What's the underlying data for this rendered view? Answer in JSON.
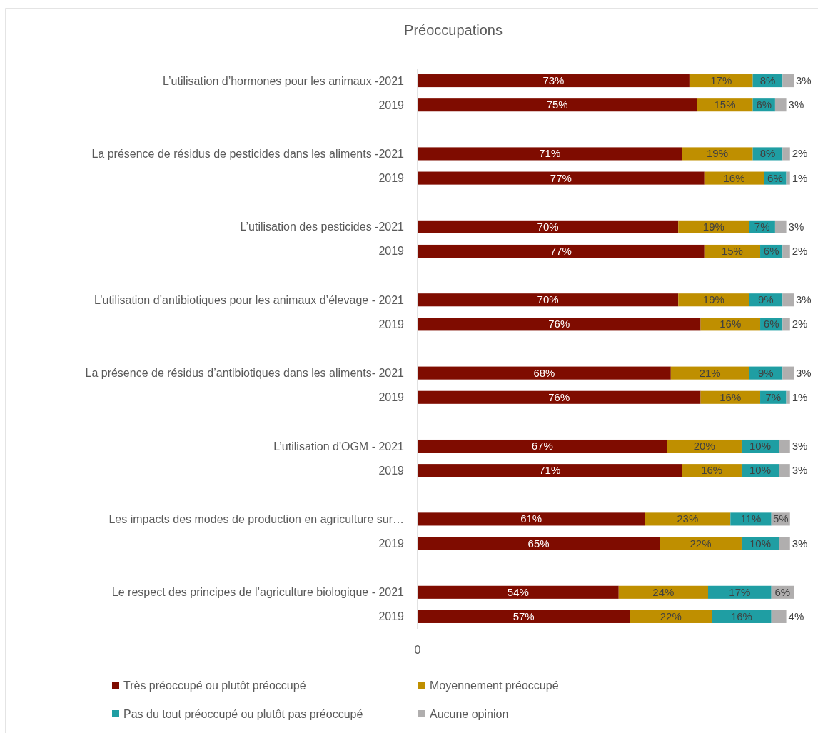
{
  "chart_data": {
    "type": "bar",
    "orientation": "horizontal",
    "stacked": true,
    "title": "Préoccupations",
    "categories": [
      "L’utilisation d’hormones pour les animaux -2021",
      "2019",
      null,
      "La présence de résidus de pesticides dans les aliments -2021",
      "2019",
      null,
      "L’utilisation des pesticides -2021",
      "2019",
      null,
      "L’utilisation d’antibiotiques pour les animaux d’élevage - 2021",
      "2019",
      null,
      "La présence de résidus d’antibiotiques dans les aliments- 2021",
      "2019",
      null,
      "L’utilisation d'OGM - 2021",
      "2019",
      null,
      "Les impacts des modes de production en agriculture sur…",
      "2019",
      null,
      "Le respect des principes de l’agriculture biologique - 2021",
      "2019"
    ],
    "series": [
      {
        "name": "Très préoccupé ou plutôt préoccupé",
        "color": "#7f0c00",
        "values": [
          73,
          75,
          null,
          71,
          77,
          null,
          70,
          77,
          null,
          70,
          76,
          null,
          68,
          76,
          null,
          67,
          71,
          null,
          61,
          65,
          null,
          54,
          57
        ],
        "value_labels": [
          "73%",
          "75%",
          null,
          "71%",
          "77%",
          null,
          "70%",
          "77%",
          null,
          "70%",
          "76%",
          null,
          "68%",
          "76%",
          null,
          "67%",
          "71%",
          null,
          "61%",
          "65%",
          null,
          "54%",
          "57%"
        ]
      },
      {
        "name": "Moyennement préoccupé",
        "color": "#bf8f00",
        "values": [
          17,
          15,
          null,
          19,
          16,
          null,
          19,
          15,
          null,
          19,
          16,
          null,
          21,
          16,
          null,
          20,
          16,
          null,
          23,
          22,
          null,
          24,
          22
        ],
        "value_labels": [
          "17%",
          "15%",
          null,
          "19%",
          "16%",
          null,
          "19%",
          "15%",
          null,
          "19%",
          "16%",
          null,
          "21%",
          "16%",
          null,
          "20%",
          "16%",
          null,
          "23%",
          "22%",
          null,
          "24%",
          "22%"
        ]
      },
      {
        "name": "Pas du tout préoccupé ou plutôt pas préoccupé",
        "color": "#1f9ea3",
        "values": [
          8,
          6,
          null,
          8,
          6,
          null,
          7,
          6,
          null,
          9,
          6,
          null,
          9,
          7,
          null,
          10,
          10,
          null,
          11,
          10,
          null,
          17,
          16
        ],
        "value_labels": [
          "8%",
          "6%",
          null,
          "8%",
          "6%",
          null,
          "7%",
          "6%",
          null,
          "9%",
          "6%",
          null,
          "9%",
          "7%",
          null,
          "10%",
          "10%",
          null,
          "11%",
          "10%",
          null,
          "17%",
          "16%"
        ]
      },
      {
        "name": "Aucune opinion",
        "color": "#b0aeae",
        "values": [
          3,
          3,
          null,
          2,
          1,
          null,
          3,
          2,
          null,
          3,
          2,
          null,
          3,
          1,
          null,
          3,
          3,
          null,
          5,
          3,
          null,
          6,
          4
        ],
        "value_labels": [
          "3%",
          "3%",
          null,
          "2%",
          "1%",
          null,
          "3%",
          "2%",
          null,
          "3%",
          "2%",
          null,
          "3%",
          "1%",
          null,
          "3%",
          "3%",
          null,
          "5%",
          "3%",
          null,
          "6%",
          "4%"
        ]
      }
    ],
    "annotations": [
      "0"
    ],
    "legend": "bottom"
  }
}
